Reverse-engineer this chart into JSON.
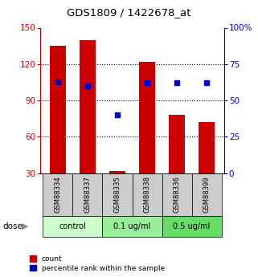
{
  "title": "GDS1809 / 1422678_at",
  "samples": [
    "GSM88334",
    "GSM88337",
    "GSM88335",
    "GSM88338",
    "GSM88336",
    "GSM88399"
  ],
  "bar_values": [
    135,
    140,
    32,
    122,
    78,
    72
  ],
  "percentile_values": [
    63,
    60,
    40,
    62,
    62,
    62
  ],
  "bar_bottom": 30,
  "ylim_left": [
    30,
    150
  ],
  "ylim_right": [
    0,
    100
  ],
  "yticks_left": [
    30,
    60,
    90,
    120,
    150
  ],
  "yticks_right": [
    0,
    25,
    50,
    75,
    100
  ],
  "ytick_labels_right": [
    "0",
    "25",
    "50",
    "75",
    "100%"
  ],
  "bar_color": "#cc0000",
  "dot_color": "#0000cc",
  "grid_yticks": [
    60,
    90,
    120
  ],
  "groups": [
    {
      "label": "control",
      "indices": [
        0,
        1
      ],
      "bg_color": "#ccffcc"
    },
    {
      "label": "0.1 ug/ml",
      "indices": [
        2,
        3
      ],
      "bg_color": "#99ee99"
    },
    {
      "label": "0.5 ug/ml",
      "indices": [
        4,
        5
      ],
      "bg_color": "#66dd66"
    }
  ],
  "dose_label": "dose",
  "legend_count_label": "count",
  "legend_pct_label": "percentile rank within the sample",
  "bar_width": 0.55,
  "sample_bg_color": "#cccccc",
  "left_axis_color": "#cc0000",
  "right_axis_color": "#0000cc",
  "fig_width": 3.21,
  "fig_height": 3.45
}
